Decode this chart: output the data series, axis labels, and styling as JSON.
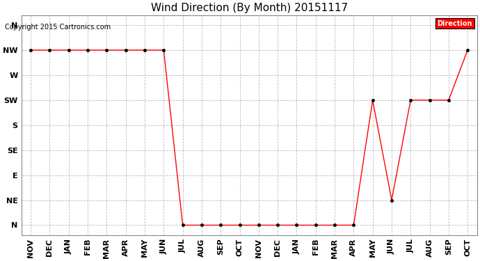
{
  "title": "Wind Direction (By Month) 20151117",
  "copyright": "Copyright 2015 Cartronics.com",
  "x_labels": [
    "NOV",
    "DEC",
    "JAN",
    "FEB",
    "MAR",
    "APR",
    "MAY",
    "JUN",
    "JUL",
    "AUG",
    "SEP",
    "OCT",
    "NOV",
    "DEC",
    "JAN",
    "FEB",
    "MAR",
    "APR",
    "MAY",
    "JUN",
    "JUL",
    "AUG",
    "SEP",
    "OCT"
  ],
  "y_tick_labels": [
    "N",
    "NE",
    "E",
    "SE",
    "S",
    "SW",
    "W",
    "NW",
    "N"
  ],
  "series": [
    7,
    7,
    7,
    7,
    7,
    7,
    7,
    7,
    0,
    0,
    0,
    0,
    0,
    0,
    0,
    0,
    0,
    0,
    5,
    1,
    5,
    5,
    5,
    7
  ],
  "line_color": "#ff0000",
  "marker_color": "#000000",
  "bg_color": "#ffffff",
  "plot_bg_color": "#ffffff",
  "grid_color": "#aaaaaa",
  "legend_bg": "#ff0000",
  "legend_text": "#ffffff",
  "legend_label": "Direction",
  "title_fontsize": 11,
  "copyright_fontsize": 7,
  "axis_fontsize": 8
}
